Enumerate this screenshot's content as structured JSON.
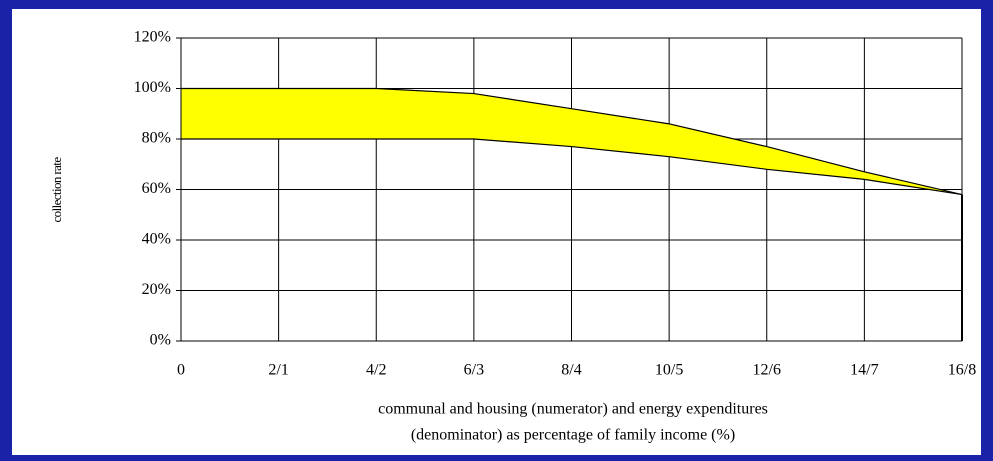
{
  "chart_data": {
    "type": "area",
    "categories": [
      "0",
      "2/1",
      "4/2",
      "6/3",
      "8/4",
      "10/5",
      "12/6",
      "14/7",
      "16/8"
    ],
    "series": [
      {
        "color": "#ffff00",
        "values": [
          100,
          100,
          100,
          98,
          92,
          86,
          77,
          67,
          58
        ]
      },
      {
        "color": "#ffff00",
        "values": [
          80,
          80,
          80,
          80,
          77,
          73,
          68,
          64,
          58
        ]
      }
    ],
    "ylim": [
      0,
      120
    ],
    "yticks": [
      {
        "value": 0,
        "label": "0%"
      },
      {
        "value": 20,
        "label": "20%"
      },
      {
        "value": 40,
        "label": "40%"
      },
      {
        "value": 60,
        "label": "60%"
      },
      {
        "value": 80,
        "label": "80%"
      },
      {
        "value": 100,
        "label": "100%"
      },
      {
        "value": 120,
        "label": "120%"
      }
    ],
    "y_label": "collection rate",
    "x_label": [
      "communal and housing (numerator) and energy expenditures",
      "(denominator) as percentage of  family income (%)"
    ],
    "grid": true
  }
}
